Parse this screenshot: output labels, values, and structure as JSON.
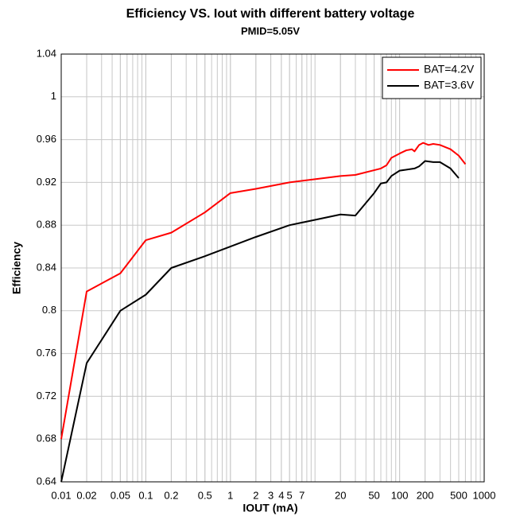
{
  "chart_data": {
    "type": "line",
    "title": "Efficiency VS. Iout with different battery voltage",
    "subtitle": "PMID=5.05V",
    "x_label": "IOUT (mA)",
    "y_label": "Efficiency",
    "x_scale": "log",
    "xlim": [
      0.01,
      1000
    ],
    "xticks": [
      0.01,
      0.02,
      0.05,
      0.1,
      0.2,
      0.5,
      1,
      2,
      3,
      4,
      5,
      7,
      20,
      50,
      100,
      200,
      500,
      1000
    ],
    "ylim": [
      0.64,
      1.04
    ],
    "yticks": [
      0.64,
      0.68,
      0.72,
      0.76,
      0.8,
      0.84,
      0.88,
      0.92,
      0.96,
      1,
      1.04
    ],
    "grid": true,
    "legend": "top-right",
    "series": [
      {
        "name": "BAT=4.2V",
        "color": "#ff0000",
        "x": [
          0.01,
          0.02,
          0.05,
          0.1,
          0.2,
          0.5,
          1,
          2,
          5,
          10,
          20,
          30,
          60,
          70,
          80,
          100,
          120,
          140,
          150,
          170,
          190,
          220,
          250,
          300,
          400,
          500,
          600
        ],
        "values": [
          0.68,
          0.818,
          0.835,
          0.866,
          0.873,
          0.892,
          0.91,
          0.914,
          0.92,
          0.923,
          0.926,
          0.927,
          0.933,
          0.936,
          0.943,
          0.947,
          0.95,
          0.951,
          0.949,
          0.955,
          0.957,
          0.955,
          0.956,
          0.955,
          0.951,
          0.945,
          0.937
        ]
      },
      {
        "name": "BAT=3.6V",
        "color": "#000000",
        "x": [
          0.01,
          0.02,
          0.05,
          0.1,
          0.2,
          0.5,
          1,
          2,
          5,
          10,
          20,
          30,
          50,
          60,
          70,
          80,
          100,
          150,
          170,
          200,
          250,
          300,
          400,
          500
        ],
        "values": [
          0.64,
          0.751,
          0.8,
          0.815,
          0.84,
          0.851,
          0.86,
          0.869,
          0.88,
          0.885,
          0.89,
          0.889,
          0.91,
          0.919,
          0.92,
          0.926,
          0.931,
          0.933,
          0.935,
          0.94,
          0.939,
          0.939,
          0.933,
          0.924
        ]
      }
    ]
  }
}
